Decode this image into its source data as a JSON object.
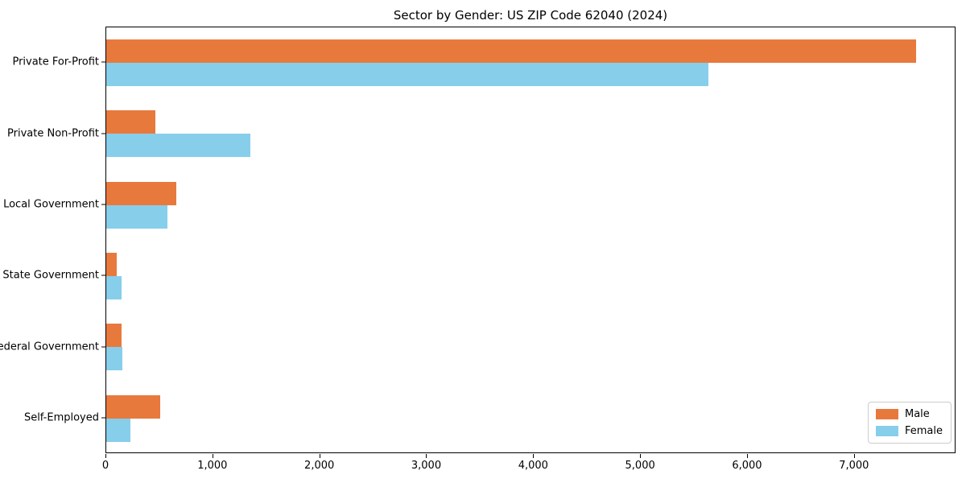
{
  "chart_data": {
    "type": "bar",
    "orientation": "horizontal",
    "title": "Sector by Gender: US ZIP Code 62040 (2024)",
    "categories": [
      "Private For-Profit",
      "Private Non-Profit",
      "Local Government",
      "State Government",
      "Federal Government",
      "Self-Employed"
    ],
    "series": [
      {
        "name": "Male",
        "color": "#e8793d",
        "values": [
          7570,
          460,
          655,
          100,
          140,
          505
        ]
      },
      {
        "name": "Female",
        "color": "#87ceeb",
        "values": [
          5630,
          1350,
          570,
          140,
          150,
          225
        ]
      }
    ],
    "xlabel": "",
    "ylabel": "",
    "xlim": [
      0,
      7950
    ],
    "xticks": [
      0,
      1000,
      2000,
      3000,
      4000,
      5000,
      6000,
      7000
    ],
    "xtick_labels": [
      "0",
      "1,000",
      "2,000",
      "3,000",
      "4,000",
      "5,000",
      "6,000",
      "7,000"
    ],
    "grid": false,
    "legend_position": "lower right"
  },
  "legend": {
    "male_label": "Male",
    "female_label": "Female"
  }
}
